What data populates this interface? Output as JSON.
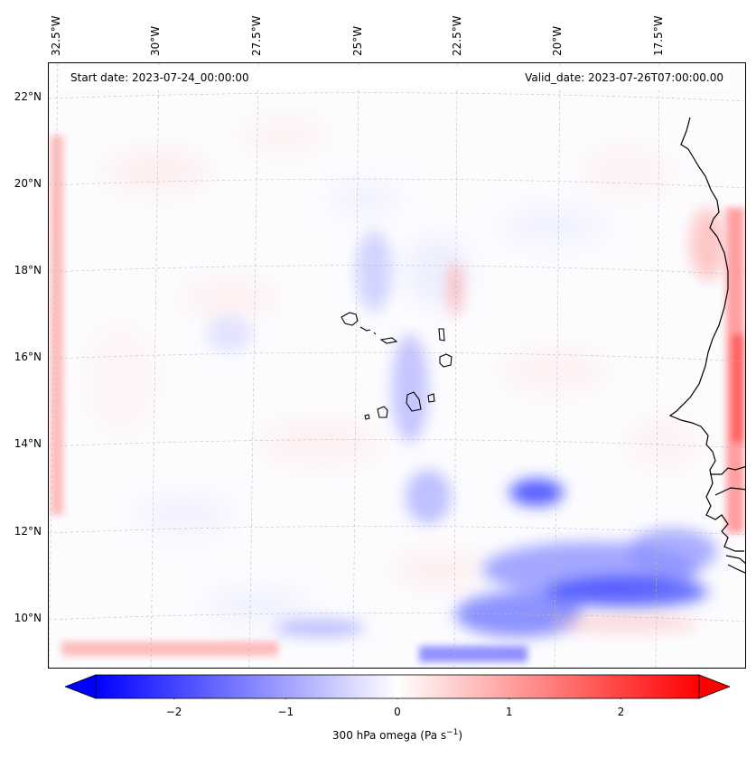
{
  "map": {
    "variable_label": "300 hPa omega (Pa s",
    "variable_unit_exponent": "−1",
    "variable_label_close": ")",
    "start_date": "Start date: 2023-07-24_00:00:00",
    "valid_date": "Valid_date: 2023-07-26T07:00:00.00",
    "projection": "lambert-conformal",
    "lon_labels": [
      "32.5°W",
      "30°W",
      "27.5°W",
      "25°W",
      "22.5°W",
      "20°W",
      "17.5°W"
    ],
    "lat_labels": [
      "22°N",
      "20°N",
      "18°N",
      "16°N",
      "14°N",
      "12°N",
      "10°N"
    ],
    "gridlines": true,
    "gridline_style": "dashed"
  },
  "colorbar": {
    "ticks": [
      "−2",
      "−1",
      "0",
      "1",
      "2"
    ],
    "range": [
      -2.7,
      2.7
    ],
    "extend": "both",
    "colormap": "bwr",
    "low_color": "#0000ff",
    "mid_color": "#ffffff",
    "high_color": "#ff0000"
  },
  "chart_data": {
    "type": "heatmap",
    "title": "",
    "colorbar_label": "300 hPa omega (Pa s−1)",
    "vmin": -2.7,
    "vmax": 2.7,
    "extent_lon": [
      -33,
      -15.5
    ],
    "extent_lat": [
      9,
      22.5
    ],
    "features": [
      {
        "label": "strong ascent band",
        "lat_range": [
          9,
          12
        ],
        "lon_range": [
          -23,
          -16
        ],
        "approx_value": -2
      },
      {
        "label": "ascent patch",
        "lat_range": [
          12.5,
          13.5
        ],
        "lon_range": [
          -21,
          -20
        ],
        "approx_value": -2.2
      },
      {
        "label": "descent along coast",
        "lat_range": [
          12,
          21
        ],
        "lon_range": [
          -16.5,
          -15.5
        ],
        "approx_value": 1.2
      },
      {
        "label": "descent western edge",
        "lat_range": [
          12,
          20
        ],
        "lon_range": [
          -33,
          -32.5
        ],
        "approx_value": 1
      }
    ]
  }
}
